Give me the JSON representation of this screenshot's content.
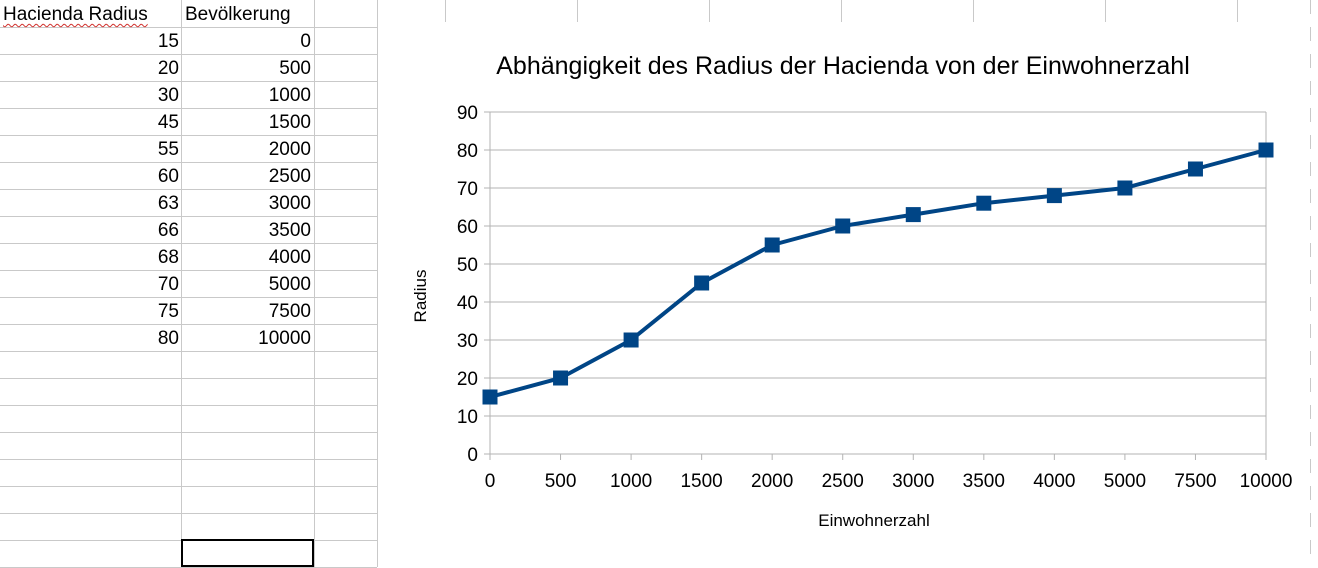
{
  "spreadsheet": {
    "headers": {
      "col_a": "Hacienda Radius",
      "col_b": "Bevölkerung"
    },
    "rows": [
      {
        "radius": "15",
        "population": "0"
      },
      {
        "radius": "20",
        "population": "500"
      },
      {
        "radius": "30",
        "population": "1000"
      },
      {
        "radius": "45",
        "population": "1500"
      },
      {
        "radius": "55",
        "population": "2000"
      },
      {
        "radius": "60",
        "population": "2500"
      },
      {
        "radius": "63",
        "population": "3000"
      },
      {
        "radius": "66",
        "population": "3500"
      },
      {
        "radius": "68",
        "population": "4000"
      },
      {
        "radius": "70",
        "population": "5000"
      },
      {
        "radius": "75",
        "population": "7500"
      },
      {
        "radius": "80",
        "population": "10000"
      }
    ]
  },
  "chart_data": {
    "type": "line",
    "title": "Abhängigkeit des Radius der Hacienda von der Einwohnerzahl",
    "xlabel": "Einwohnerzahl",
    "ylabel": "Radius",
    "categories": [
      "0",
      "500",
      "1000",
      "1500",
      "2000",
      "2500",
      "3000",
      "3500",
      "4000",
      "5000",
      "7500",
      "10000"
    ],
    "series": [
      {
        "values": [
          15,
          20,
          30,
          45,
          55,
          60,
          63,
          66,
          68,
          70,
          75,
          80
        ]
      }
    ],
    "ylim": [
      0,
      90
    ],
    "yticks": [
      0,
      10,
      20,
      30,
      40,
      50,
      60,
      70,
      80,
      90
    ],
    "grid": true,
    "legend": "none",
    "marker": "square",
    "color": "#004586"
  }
}
